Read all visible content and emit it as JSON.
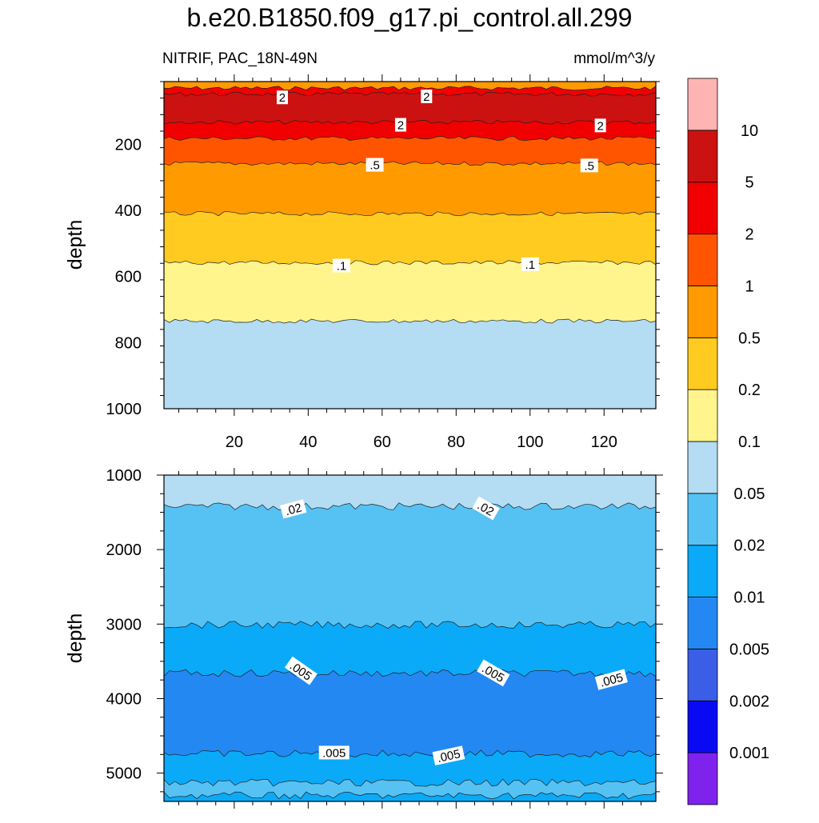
{
  "title": "b.e20.B1850.f09_g17.pi_control.all.299",
  "subtitle_left": "NITRIF, PAC_18N-49N",
  "subtitle_right": "mmol/m^3/y",
  "colors": {
    "band_colors": [
      "#7f22ee",
      "#0a0af2",
      "#3a5ee6",
      "#2488f2",
      "#0aaaf8",
      "#56c2f4",
      "#b4dcf2",
      "#fff58c",
      "#ffcb20",
      "#ff9a00",
      "#ff5500",
      "#f00000",
      "#cc1111",
      "#ffb4b4"
    ]
  },
  "chart_data": [
    {
      "type": "contour",
      "xlabel": "",
      "ylabel": "depth",
      "xlim": [
        1,
        134
      ],
      "ylim": [
        1000,
        10
      ],
      "x_ticks": [
        20,
        40,
        60,
        80,
        100,
        120
      ],
      "y_ticks": [
        200,
        400,
        600,
        800,
        1000
      ],
      "boundaries": [
        {
          "depth": 30,
          "upper": "0.5",
          "lower": "2"
        },
        {
          "depth": 48,
          "upper": "2",
          "lower": "5"
        },
        {
          "depth": 133,
          "upper": "5",
          "lower": "2"
        },
        {
          "depth": 182,
          "upper": "2",
          "lower": "1"
        },
        {
          "depth": 258,
          "upper": "1",
          "lower": "0.5"
        },
        {
          "depth": 410,
          "upper": "0.5",
          "lower": "0.2"
        },
        {
          "depth": 558,
          "upper": "0.2",
          "lower": "0.1"
        },
        {
          "depth": 735,
          "upper": "0.1",
          "lower": "0.05"
        }
      ],
      "below_color_level": "0.05",
      "contour_labels": [
        {
          "text": "2",
          "x": 33,
          "depth": 59
        },
        {
          "text": "2",
          "x": 72,
          "depth": 56
        },
        {
          "text": "2",
          "x": 65,
          "depth": 142
        },
        {
          "text": "2",
          "x": 119,
          "depth": 144
        },
        {
          "text": ".5",
          "x": 58,
          "depth": 263
        },
        {
          "text": ".5",
          "x": 116,
          "depth": 265
        },
        {
          "text": ".1",
          "x": 49,
          "depth": 568
        },
        {
          "text": ".1",
          "x": 100,
          "depth": 564
        }
      ]
    },
    {
      "type": "contour",
      "xlabel": "",
      "ylabel": "depth",
      "xlim": [
        1,
        134
      ],
      "ylim": [
        5380,
        1000
      ],
      "x_ticks": [
        20,
        40,
        60,
        80,
        100,
        120
      ],
      "y_ticks": [
        1000,
        2000,
        3000,
        4000,
        5000
      ],
      "boundaries": [
        {
          "depth": 1420,
          "upper": "0.05",
          "lower": "0.02"
        },
        {
          "depth": 3010,
          "upper": "0.02",
          "lower": "0.01"
        },
        {
          "depth": 3660,
          "upper": "0.01",
          "lower": "0.005"
        },
        {
          "depth": 4740,
          "upper": "0.005",
          "lower": "0.01"
        },
        {
          "depth": 5130,
          "upper": "0.01",
          "lower": "0.02"
        },
        {
          "depth": 5300,
          "upper": "0.02",
          "lower": "0.01"
        }
      ],
      "below_color_level": "0.01",
      "contour_labels": [
        {
          "text": ".02",
          "x": 36,
          "depth": 1460,
          "angle": -15
        },
        {
          "text": ".02",
          "x": 88,
          "depth": 1450,
          "angle": 30
        },
        {
          "text": ".005",
          "x": 38,
          "depth": 3630,
          "angle": 35
        },
        {
          "text": ".005",
          "x": 90,
          "depth": 3660,
          "angle": 30
        },
        {
          "text": ".005",
          "x": 122,
          "depth": 3750,
          "angle": -15
        },
        {
          "text": ".005",
          "x": 47,
          "depth": 4730,
          "angle": 0
        },
        {
          "text": ".005",
          "x": 78,
          "depth": 4770,
          "angle": -12
        }
      ]
    }
  ],
  "colorbar": {
    "levels": [
      "0.001",
      "0.002",
      "0.005",
      "0.01",
      "0.02",
      "0.05",
      "0.1",
      "0.2",
      "0.5",
      "1",
      "2",
      "5",
      "10"
    ]
  }
}
